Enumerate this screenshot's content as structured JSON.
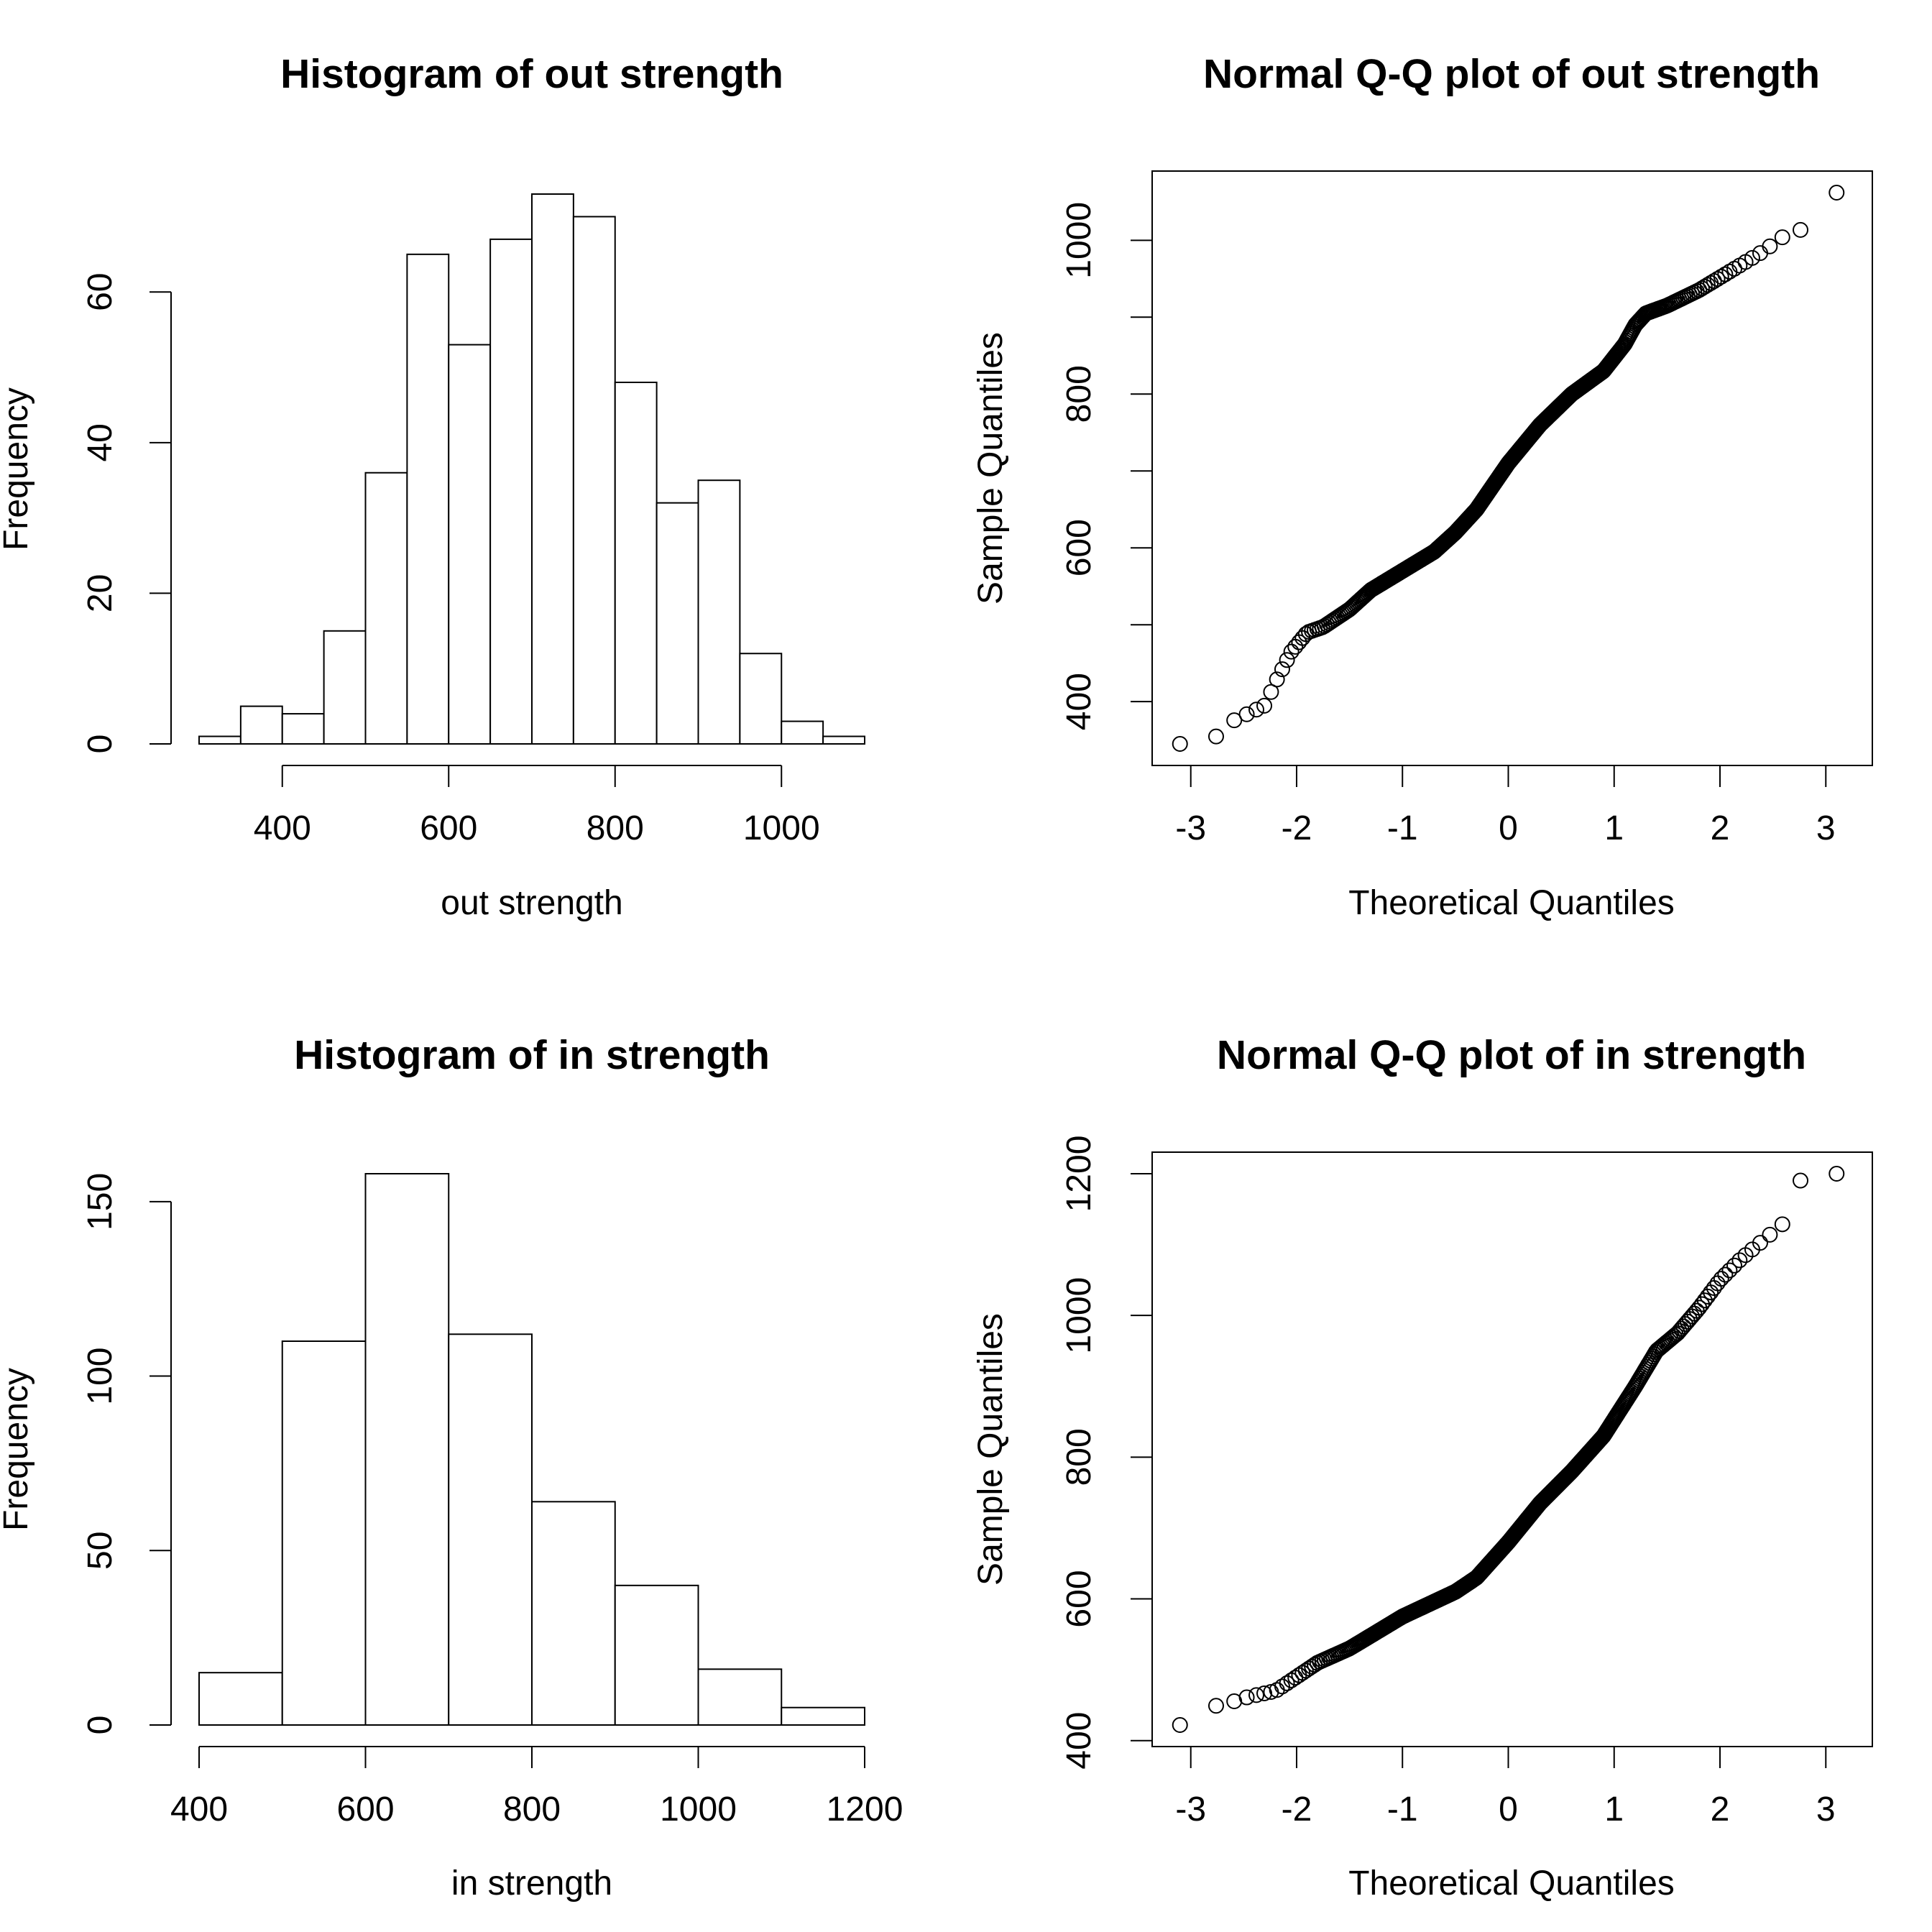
{
  "chart_data": [
    {
      "type": "bar",
      "subtype": "histogram",
      "title": "Histogram of out strength",
      "xlabel": "out strength",
      "ylabel": "Frequency",
      "bin_edges": [
        300,
        350,
        400,
        450,
        500,
        550,
        600,
        650,
        700,
        750,
        800,
        850,
        900,
        950,
        1000,
        1050,
        1100
      ],
      "values": [
        1,
        5,
        4,
        15,
        36,
        65,
        53,
        67,
        73,
        70,
        48,
        32,
        35,
        12,
        3,
        1
      ],
      "xticks": [
        400,
        600,
        800,
        1000
      ],
      "yticks": [
        0,
        20,
        40,
        60
      ],
      "xlim": [
        300,
        1100
      ],
      "ylim": [
        0,
        73
      ]
    },
    {
      "type": "scatter",
      "subtype": "qq",
      "title": "Normal Q-Q plot of out strength",
      "xlabel": "Theoretical Quantiles",
      "ylabel": "Sample Quantiles",
      "xticks": [
        -3,
        -2,
        -1,
        0,
        1,
        2,
        3
      ],
      "yticks": [
        400,
        500,
        600,
        700,
        800,
        900,
        1000
      ],
      "ytick_labels": [
        "400",
        "",
        "600",
        "",
        "800",
        "",
        "1000"
      ],
      "xlim": [
        -3.1,
        3.1
      ],
      "ylim": [
        345,
        1062
      ],
      "n": 520,
      "quantile_curve": {
        "z": [
          -3.1,
          -2.75,
          -2.6,
          -2.45,
          -2.3,
          -2.2,
          -2.05,
          -1.9,
          -1.75,
          -1.5,
          -1.3,
          -1.0,
          -0.7,
          -0.5,
          -0.3,
          0.0,
          0.3,
          0.6,
          0.9,
          1.1,
          1.2,
          1.3,
          1.5,
          1.8,
          2.1,
          2.4,
          2.6,
          2.75,
          3.1
        ],
        "y": [
          345,
          355,
          375,
          385,
          395,
          425,
          465,
          490,
          497,
          520,
          545,
          570,
          595,
          620,
          650,
          710,
          760,
          800,
          830,
          865,
          890,
          905,
          915,
          935,
          960,
          985,
          1005,
          1012,
          1062
        ]
      }
    },
    {
      "type": "bar",
      "subtype": "histogram",
      "title": "Histogram of in strength",
      "xlabel": "in strength",
      "ylabel": "Frequency",
      "bin_edges": [
        400,
        500,
        600,
        700,
        800,
        900,
        1000,
        1100,
        1200
      ],
      "values": [
        15,
        110,
        158,
        112,
        64,
        40,
        16,
        5
      ],
      "xticks": [
        400,
        600,
        800,
        1000,
        1200
      ],
      "yticks": [
        0,
        50,
        100,
        150
      ],
      "xlim": [
        400,
        1200
      ],
      "ylim": [
        0,
        158
      ]
    },
    {
      "type": "scatter",
      "subtype": "qq",
      "title": "Normal Q-Q plot of in strength",
      "xlabel": "Theoretical Quantiles",
      "ylabel": "Sample Quantiles",
      "xticks": [
        -3,
        -2,
        -1,
        0,
        1,
        2,
        3
      ],
      "yticks": [
        400,
        600,
        800,
        1000,
        1200
      ],
      "xlim": [
        -3.1,
        3.1
      ],
      "ylim": [
        422,
        1200
      ],
      "n": 520,
      "quantile_curve": {
        "z": [
          -3.1,
          -2.75,
          -2.6,
          -2.45,
          -2.2,
          -2.0,
          -1.8,
          -1.5,
          -1.0,
          -0.5,
          -0.3,
          0.0,
          0.3,
          0.6,
          0.9,
          1.2,
          1.4,
          1.6,
          1.8,
          2.0,
          2.2,
          2.4,
          2.6,
          2.75,
          3.1
        ],
        "y": [
          422,
          450,
          455,
          462,
          470,
          490,
          510,
          530,
          575,
          610,
          630,
          680,
          735,
          780,
          830,
          900,
          950,
          975,
          1010,
          1050,
          1080,
          1105,
          1130,
          1190,
          1200
        ]
      }
    }
  ]
}
